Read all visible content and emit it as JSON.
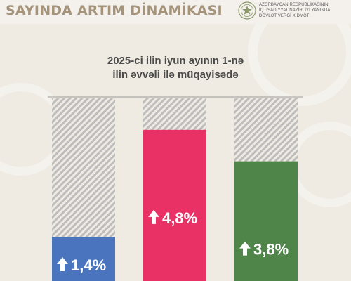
{
  "header": {
    "title": "SAYINDA ARTIM DİNAMİKASI",
    "org_lines": [
      "AZƏRBAYCAN RESPUBLİKASININ",
      "İQTİSADİYYAT NAZİRLİYİ YANINDA",
      "DÖVLƏT VERGİ XİDMƏTİ"
    ]
  },
  "colors": {
    "background": "#efebe3",
    "title": "#a5937a",
    "hatch": "#bdbdbd",
    "bar_blue": "#4a74be",
    "bar_pink": "#e93166",
    "bar_green": "#4f8548"
  },
  "chart_data": {
    "type": "bar",
    "title_lines": [
      "2025-ci ilin iyun ayının 1-nə",
      "ilin əvvəli ilə müqayisədə"
    ],
    "categories": [
      "",
      "",
      ""
    ],
    "values": [
      1.4,
      4.8,
      3.8
    ],
    "labels": [
      "1,4%",
      "4,8%",
      "3,8%"
    ],
    "colors": [
      "#4a74be",
      "#e93166",
      "#4f8548"
    ],
    "label_icon": "up-arrow-icon",
    "ylim": [
      0,
      5.8
    ],
    "grid": false,
    "legend": "none"
  }
}
